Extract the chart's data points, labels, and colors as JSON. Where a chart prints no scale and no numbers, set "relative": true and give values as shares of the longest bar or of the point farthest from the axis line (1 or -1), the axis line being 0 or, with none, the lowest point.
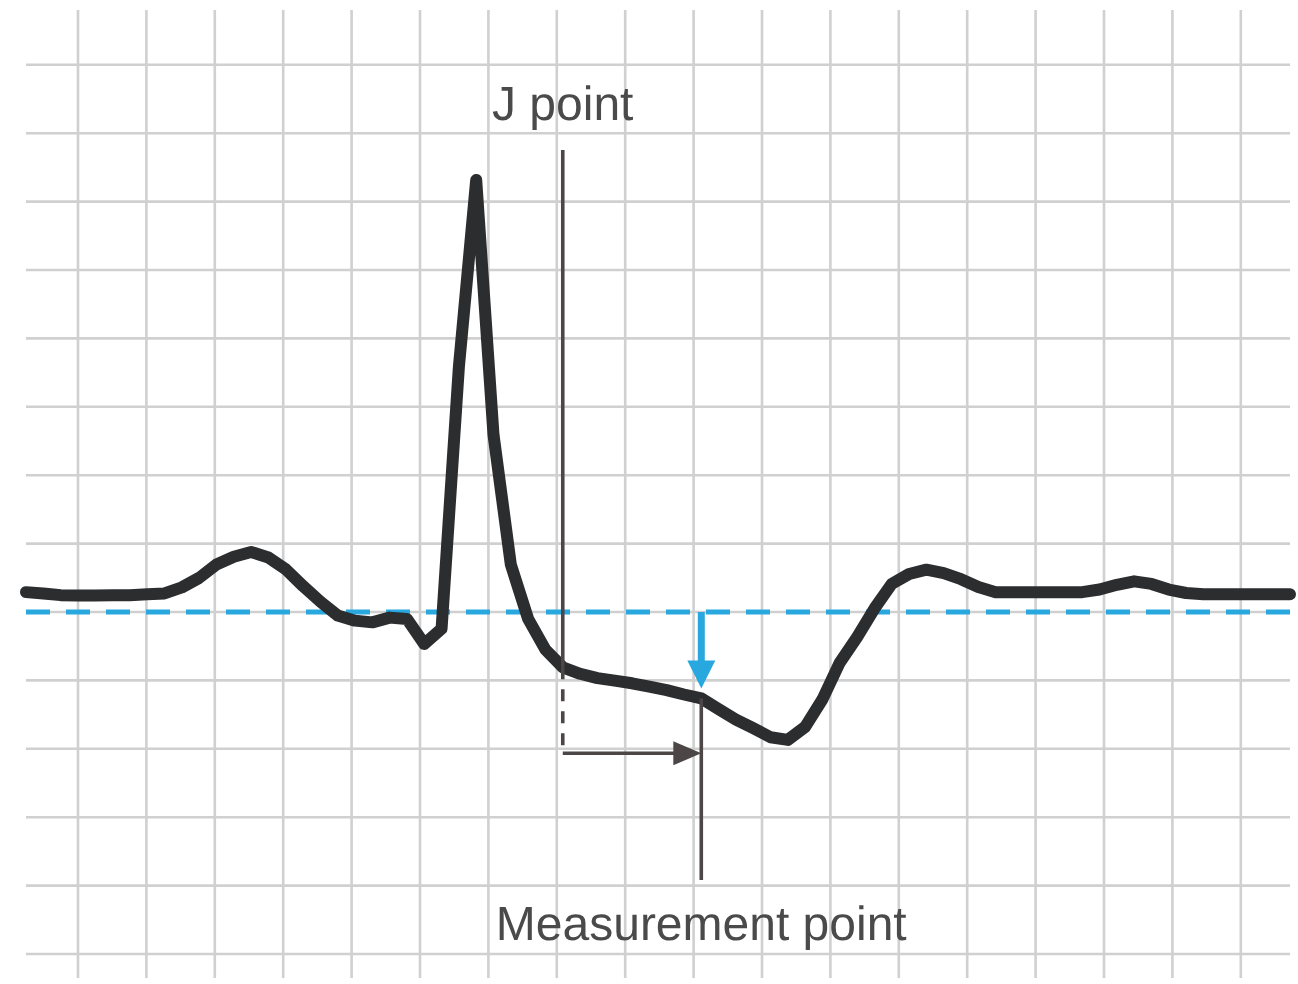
{
  "chart_data": {
    "type": "line",
    "relative": true,
    "grid": true,
    "line_style": "solid",
    "marker": "none",
    "categories": [
      null,
      null,
      null,
      null,
      null,
      null,
      null,
      null,
      null,
      null,
      null,
      null,
      null,
      null,
      null,
      null,
      null,
      null,
      null,
      null,
      null,
      null,
      null,
      null,
      null,
      null,
      null,
      null,
      null,
      null,
      null,
      null,
      null,
      null,
      null,
      null,
      null,
      null,
      null,
      null,
      null,
      null,
      null,
      null,
      null,
      null,
      null,
      null,
      null,
      null,
      null,
      null,
      null,
      null,
      null,
      null,
      null,
      null,
      null,
      null,
      null,
      null,
      null,
      null,
      null,
      null,
      null,
      null,
      null,
      null,
      null,
      null,
      null,
      null
    ],
    "series": [
      {
        "color": "#2b2d2f",
        "values": [
          0.046,
          0.043,
          0.039,
          0.038,
          0.038,
          0.039,
          0.039,
          0.041,
          0.043,
          0.057,
          0.079,
          0.11,
          0.128,
          0.139,
          0.126,
          0.099,
          0.06,
          0.024,
          -0.008,
          -0.02,
          -0.024,
          -0.013,
          -0.016,
          -0.074,
          -0.039,
          0.567,
          1,
          0.41,
          0.11,
          -0.016,
          -0.087,
          -0.128,
          -0.143,
          -0.153,
          -0.159,
          -0.165,
          -0.173,
          -0.181,
          -0.191,
          -0.2,
          -0.225,
          -0.249,
          -0.269,
          -0.29,
          -0.296,
          -0.266,
          -0.202,
          -0.117,
          -0.058,
          0.008,
          0.065,
          0.088,
          0.098,
          0.09,
          0.076,
          0.058,
          0.046,
          0.046,
          0.046,
          0.046,
          0.046,
          0.046,
          0.052,
          0.063,
          0.071,
          0.065,
          0.052,
          0.044,
          0.041,
          0.041,
          0.041,
          0.041,
          0.041,
          0.041
        ]
      }
    ],
    "ref_lines": [
      {
        "axis": "y",
        "value": 0,
        "color": "#29a8e0",
        "line_style": "dashed"
      }
    ],
    "annotations": [
      "J point",
      "Measurement point"
    ]
  }
}
